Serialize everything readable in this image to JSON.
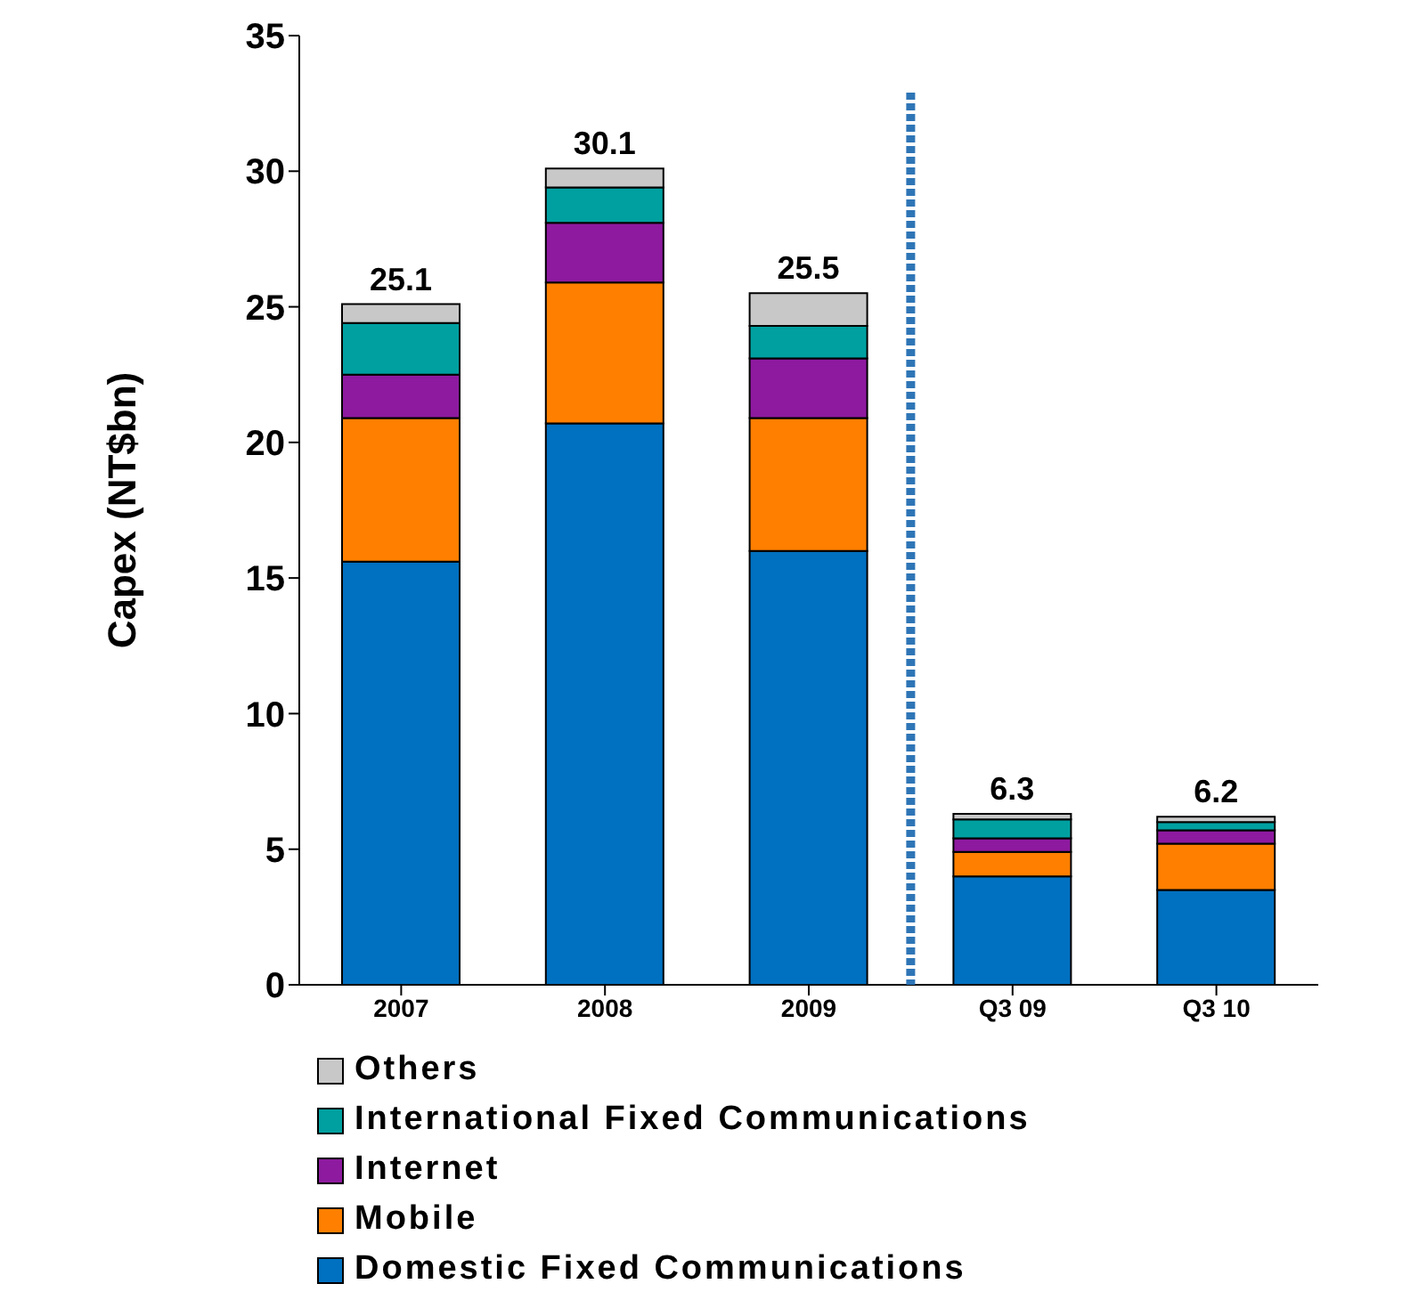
{
  "chart_data": {
    "type": "bar",
    "stacked": true,
    "ylabel": "Capex (NT$bn)",
    "categories": [
      "2007",
      "2008",
      "2009",
      "Q3 09",
      "Q3  10"
    ],
    "series": [
      {
        "name": "Domestic Fixed Communications",
        "color": "#0070c0",
        "values": [
          15.6,
          20.7,
          16.0,
          4.0,
          3.5
        ]
      },
      {
        "name": "Mobile",
        "color": "#ff7f00",
        "values": [
          5.3,
          5.2,
          4.9,
          0.9,
          1.7
        ]
      },
      {
        "name": "Internet",
        "color": "#8e1a9f",
        "values": [
          1.6,
          2.2,
          2.2,
          0.5,
          0.5
        ]
      },
      {
        "name": "International Fixed Communications",
        "color": "#00a0a0",
        "values": [
          1.9,
          1.3,
          1.2,
          0.7,
          0.3
        ]
      },
      {
        "name": "Others",
        "color": "#c8c8c8",
        "values": [
          0.7,
          0.7,
          1.2,
          0.2,
          0.2
        ]
      }
    ],
    "totals": [
      "25.1",
      "30.1",
      "25.5",
      "6.3",
      "6.2"
    ],
    "ref_lines": [
      {
        "axis": "x",
        "value": "Q3 09",
        "color": "#2e75b6",
        "line_style": "dashed"
      }
    ],
    "ylim": [
      0,
      35
    ],
    "yticks": [
      0,
      5,
      10,
      15,
      20,
      25,
      30,
      35
    ],
    "grid": false,
    "legend": "bottom"
  }
}
